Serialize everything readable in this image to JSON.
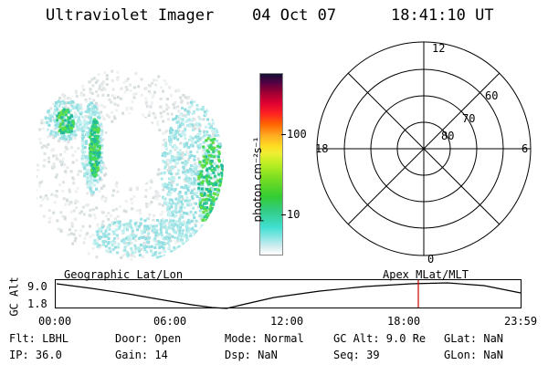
{
  "header": {
    "instrument": "Ultraviolet Imager",
    "date": "04 Oct 07",
    "time": "18:41:10 UT"
  },
  "colorbar": {
    "label": "photon cm⁻²s⁻¹",
    "ticks": [
      "100",
      "10"
    ],
    "scale": "log"
  },
  "polar": {
    "mlt_labels": [
      "12",
      "18",
      "6",
      "0"
    ],
    "lat_labels": [
      "60",
      "70",
      "80"
    ]
  },
  "timeline": {
    "left_title": "Geographic Lat/Lon",
    "right_title": "Apex MLat/MLT",
    "ylabel": "GC Alt",
    "ytick_top": "9.0",
    "ytick_bottom": "1.8",
    "xticks": [
      "00:00",
      "06:00",
      "12:00",
      "18:00",
      "23:59"
    ],
    "marker_color": "#cc0000"
  },
  "footer": {
    "col1": {
      "r1": "Flt: LBHL",
      "r2": "IP: 36.0"
    },
    "col2": {
      "r1": "Door: Open",
      "r2": "Gain: 14"
    },
    "col3": {
      "r1": "Mode: Normal",
      "r2": "Dsp:     NaN"
    },
    "col4": {
      "r1": "GC Alt: 9.0 Re",
      "r2": "Seq: 39"
    },
    "col5": {
      "r1": "GLat:    NaN",
      "r2": "GLon:    NaN"
    }
  }
}
